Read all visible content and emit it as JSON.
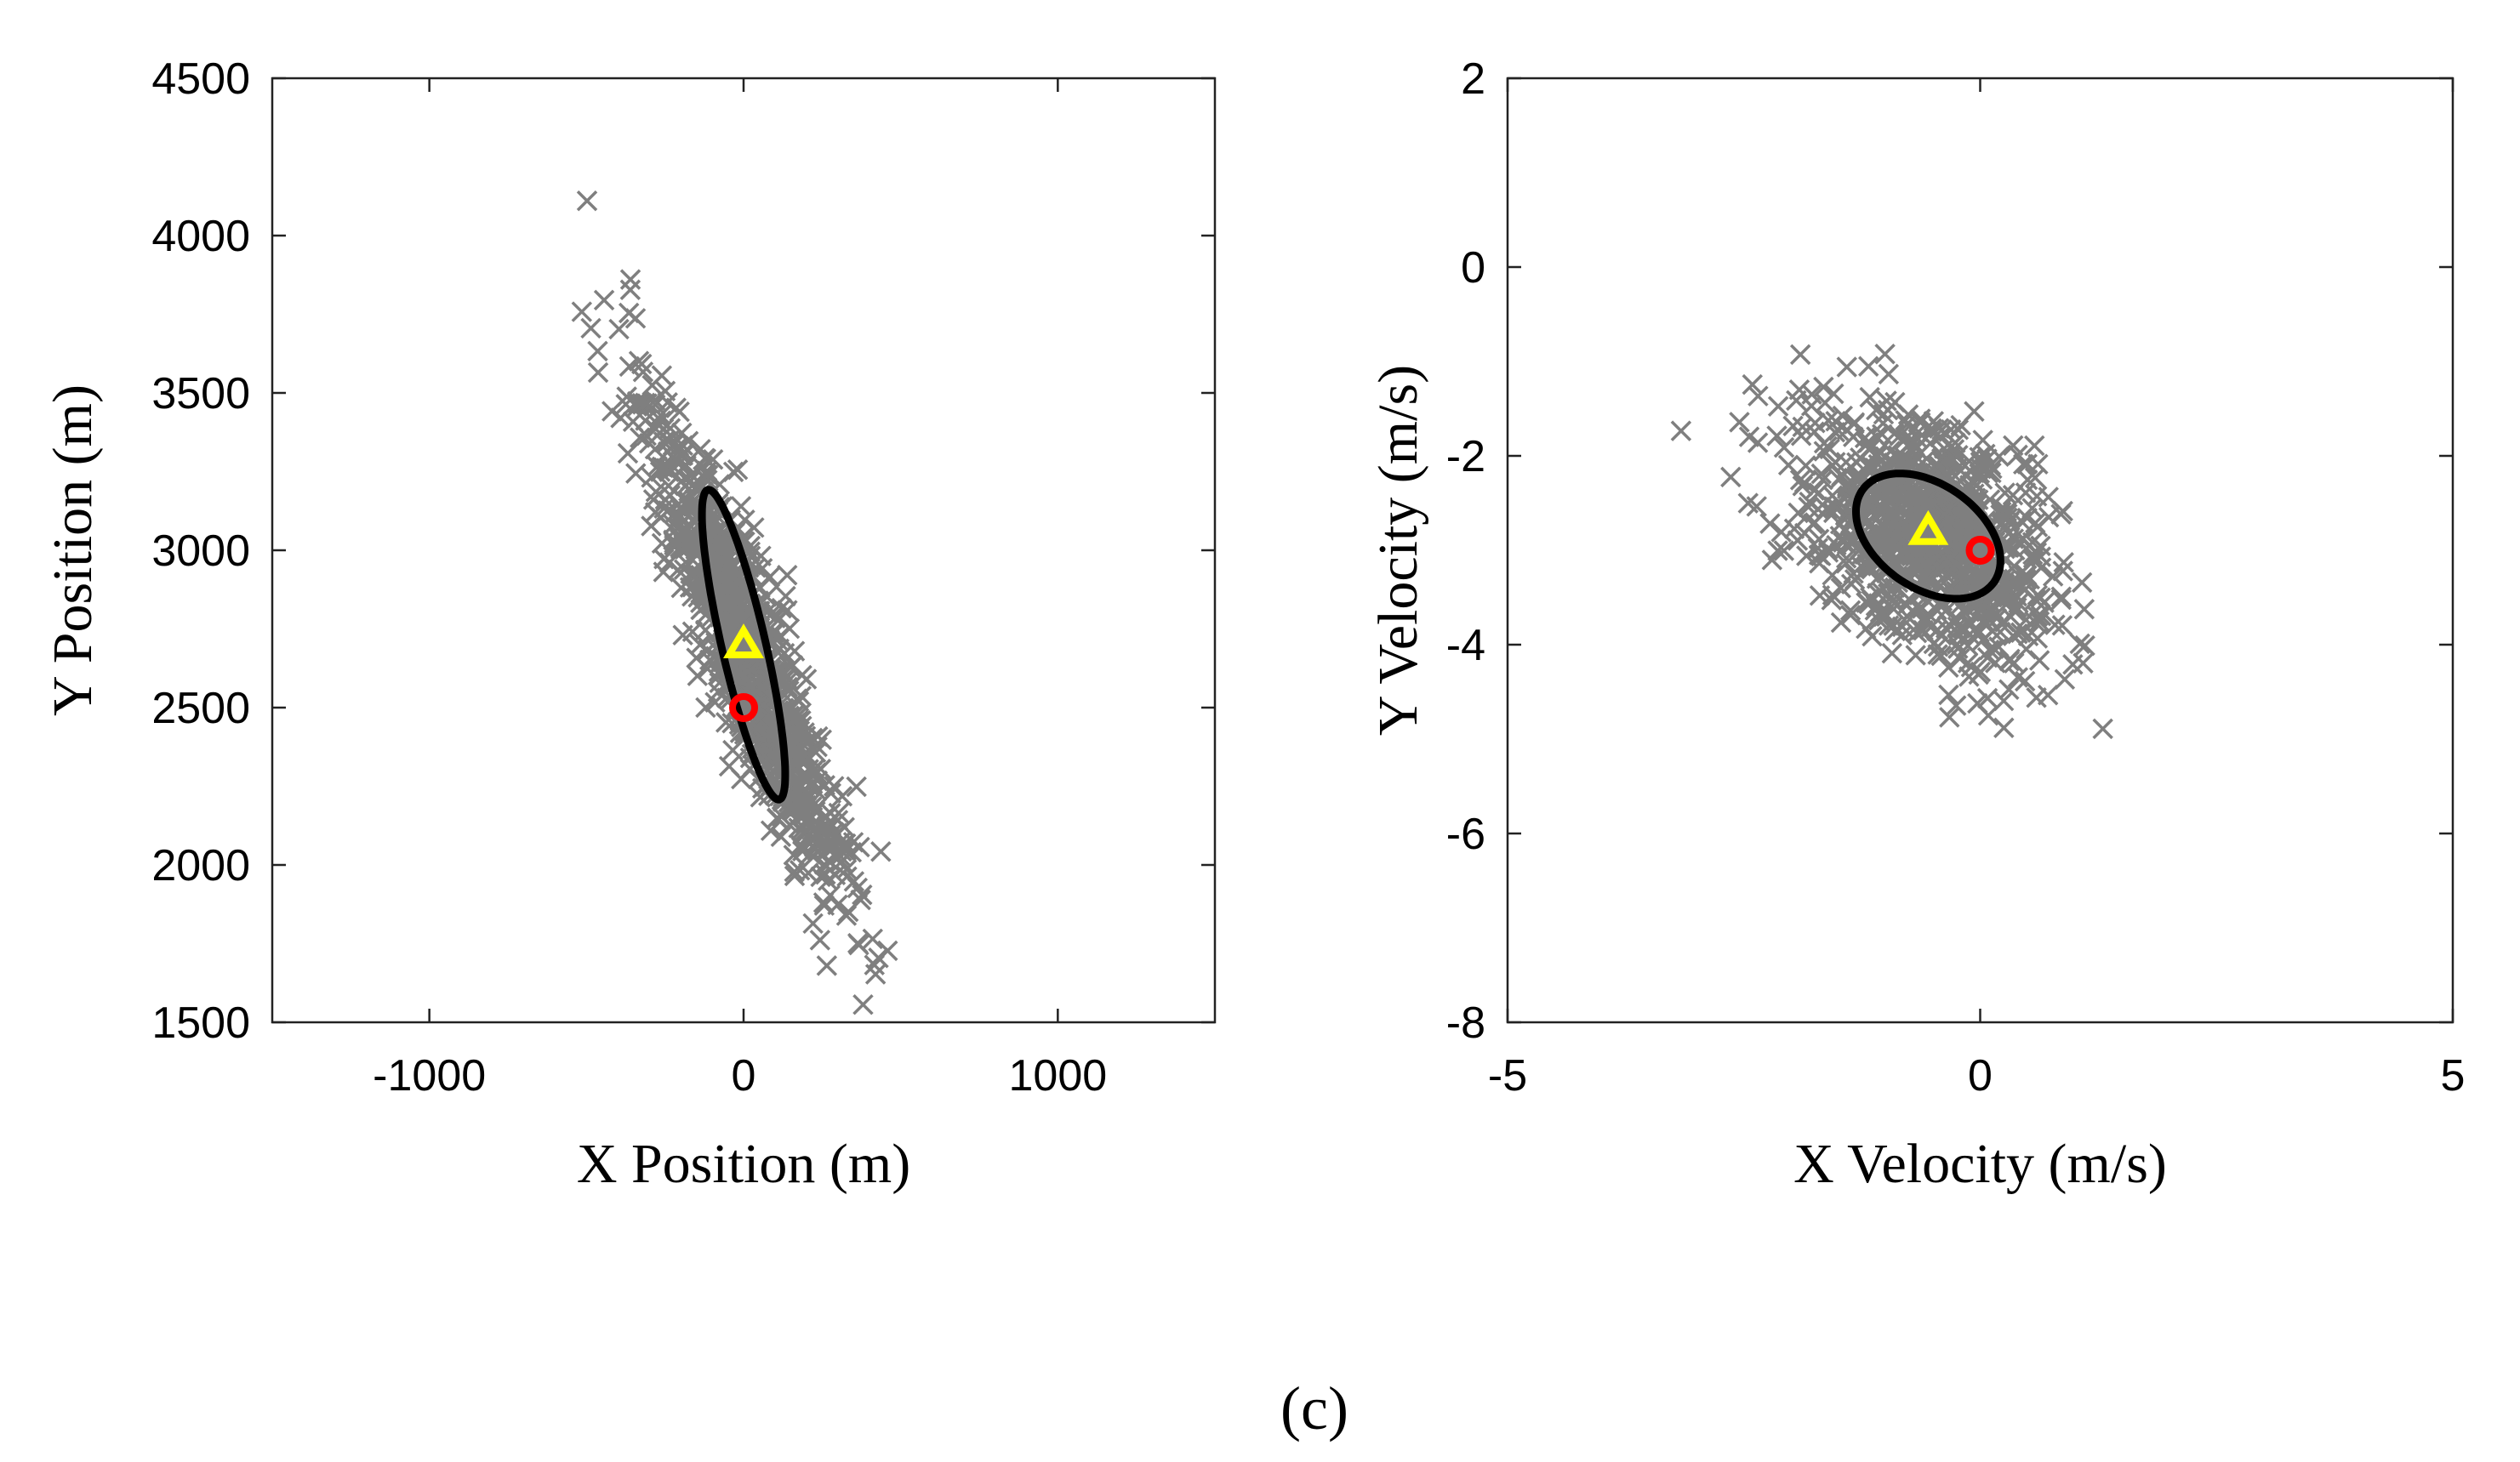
{
  "figure_label": "(c)",
  "chart_data": [
    {
      "type": "scatter",
      "xlabel": "X Position (m)",
      "ylabel": "Y Position (m)",
      "xlim": [
        -1500,
        1500
      ],
      "ylim": [
        1500,
        4500
      ],
      "xticks": [
        -1000,
        0,
        1000
      ],
      "yticks": [
        1500,
        2000,
        2500,
        3000,
        3500,
        4000,
        4500
      ],
      "xtick_labels": [
        "-1000",
        "0",
        "1000"
      ],
      "ytick_labels": [
        "1500",
        "2000",
        "2500",
        "3000",
        "3500",
        "4000",
        "4500"
      ],
      "samples": {
        "name": "samples",
        "marker": "x",
        "color": "#7f7f7f",
        "count": 1000,
        "mean": [
          0,
          2700
        ],
        "cov": [
          [
            26000,
            -58000
          ],
          [
            -58000,
            160000
          ]
        ]
      },
      "ellipse": {
        "name": "covariance ellipse",
        "color": "#000000",
        "center": [
          0,
          2700
        ],
        "semi_major": 505,
        "semi_minor": 70,
        "angle_deg": -77
      },
      "estimate": {
        "name": "estimate",
        "marker": "triangle",
        "color": "#ffff00",
        "x": 0,
        "y": 2700
      },
      "truth": {
        "name": "true",
        "marker": "circle",
        "color": "#ff0000",
        "x": 0,
        "y": 2500
      }
    },
    {
      "type": "scatter",
      "xlabel": "X Velocity (m/s)",
      "ylabel": "Y Velocity (m/s)",
      "xlim": [
        -5,
        5
      ],
      "ylim": [
        -8,
        2
      ],
      "xticks": [
        -5,
        0,
        5
      ],
      "yticks": [
        -8,
        -6,
        -4,
        -2,
        0,
        2
      ],
      "xtick_labels": [
        "-5",
        "0",
        "5"
      ],
      "ytick_labels": [
        "-8",
        "-6",
        "-4",
        "-2",
        "0",
        "2"
      ],
      "samples": {
        "name": "samples",
        "marker": "x",
        "color": "#7f7f7f",
        "count": 1000,
        "mean": [
          -0.55,
          -2.85
        ],
        "cov": [
          [
            0.45,
            -0.2
          ],
          [
            -0.2,
            0.45
          ]
        ]
      },
      "ellipse": {
        "name": "covariance ellipse",
        "color": "#000000",
        "center": [
          -0.55,
          -2.85
        ],
        "semi_major": 0.85,
        "semi_minor": 0.55,
        "angle_deg": -35
      },
      "estimate": {
        "name": "estimate",
        "marker": "triangle",
        "color": "#ffff00",
        "x": -0.55,
        "y": -2.8
      },
      "truth": {
        "name": "true",
        "marker": "circle",
        "color": "#ff0000",
        "x": 0,
        "y": -3
      }
    }
  ]
}
